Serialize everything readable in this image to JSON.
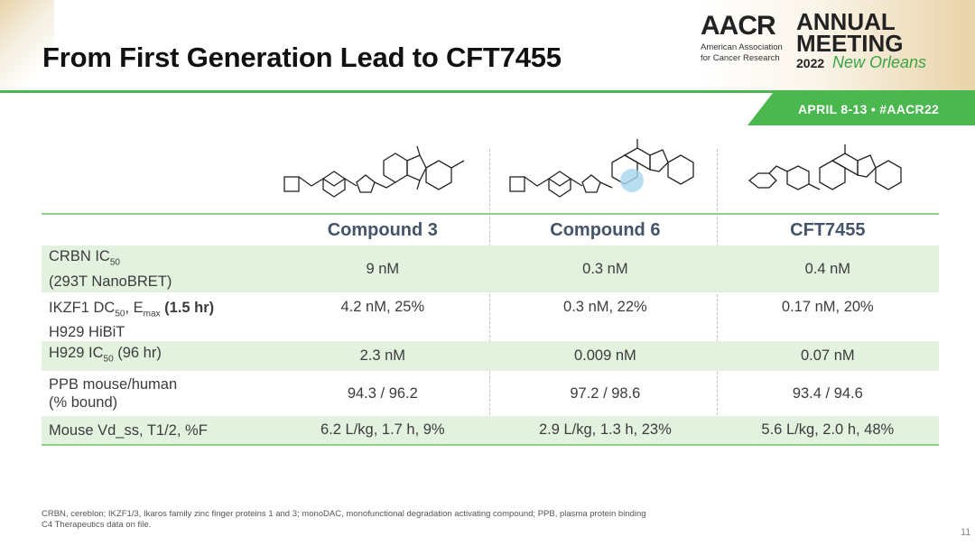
{
  "title": "From First Generation Lead to CFT7455",
  "branding": {
    "aacr": "AACR",
    "aacr_sub": "American Association\nfor Cancer Research",
    "annual_meeting": "ANNUAL\nMEETING",
    "year": "2022",
    "city": "New Orleans",
    "dates": "APRIL 8-13 • #AACR22"
  },
  "table": {
    "headers": [
      "Compound 3",
      "Compound 6",
      "CFT7455"
    ],
    "rows": [
      {
        "label_html": "CRBN IC<sub>50</sub><br>(293T NanoBRET)",
        "values": [
          "9 nM",
          "0.3 nM",
          "0.4 nM"
        ]
      },
      {
        "label_html": "IKZF1 DC<sub>50</sub>, E<sub>max</sub> <b>(1.5 hr)</b><br>H929 HiBiT",
        "values": [
          "4.2 nM, 25%",
          "0.3 nM, 22%",
          "0.17 nM, 20%"
        ]
      },
      {
        "label_html": "H929 IC<sub>50</sub> (96 hr)",
        "values": [
          "2.3 nM",
          "0.009 nM",
          "0.07 nM"
        ]
      },
      {
        "label_html": "PPB mouse/human<br>(% bound)",
        "values": [
          "94.3 / 96.2",
          "97.2 / 98.6",
          "93.4 / 94.6"
        ]
      },
      {
        "label_html": "Mouse Vd_ss, T1/2, %F",
        "values": [
          "6.2 L/kg, 1.7 h, 9%",
          "2.9 L/kg, 1.3 h, 23%",
          "5.6 L/kg, 2.0 h, 48%"
        ]
      }
    ]
  },
  "footnote": "CRBN, cereblon; IKZF1/3, Ikaros family zinc finger proteins 1 and 3; monoDAC, monofunctional degradation activating compound; PPB, plasma protein binding\nC4 Therapeutics data on file.",
  "page_number": "11",
  "colors": {
    "accent_green": "#4ab84f",
    "band": "#e2f2df",
    "header_text": "#44546a"
  }
}
